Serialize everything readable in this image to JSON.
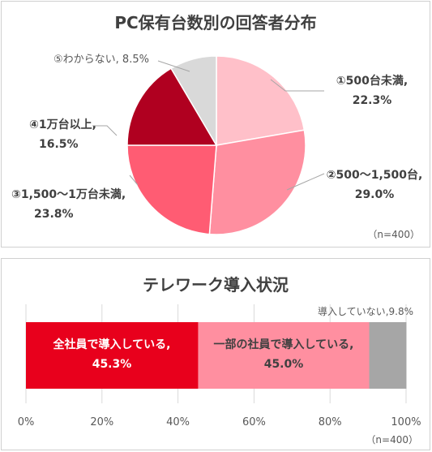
{
  "pie_chart": {
    "title": "PC保有台数別の回答者分布",
    "note": "（n=400）",
    "labels": [
      {
        "line1": "①500台未満,",
        "line2": "22.3%"
      },
      {
        "line1": "②500～1,500台,",
        "line2": "29.0%"
      },
      {
        "line1": "③1,500～1万台未満,",
        "line2": "23.8%"
      },
      {
        "line1": "④1万台以上,",
        "line2": "16.5%"
      },
      {
        "line1": "⑤わからない, 8.5%"
      }
    ]
  },
  "bar_chart": {
    "title": "テレワーク導入状況",
    "note": "（n=400）",
    "segment_labels": [
      {
        "line1": "全社員で導入している,",
        "line2": "45.3%"
      },
      {
        "line1": "一部の社員で導入している,",
        "line2": "45.0%"
      },
      {
        "line1": "導入していない,9.8%"
      }
    ],
    "ticks": [
      "0%",
      "20%",
      "40%",
      "60%",
      "80%",
      "100%"
    ]
  },
  "chart_data": [
    {
      "type": "pie",
      "title": "PC保有台数別の回答者分布",
      "categories": [
        "①500台未満",
        "②500～1,500台",
        "③1,500～1万台未満",
        "④1万台以上",
        "⑤わからない"
      ],
      "values": [
        22.3,
        29.0,
        23.8,
        16.5,
        8.5
      ],
      "colors": [
        "#ffc0c9",
        "#ff8fa0",
        "#ff5c73",
        "#b00020",
        "#d9d9d9"
      ],
      "n": 400
    },
    {
      "type": "bar",
      "orientation": "horizontal-stacked",
      "title": "テレワーク導入状況",
      "categories": [
        "全社員で導入している",
        "一部の社員で導入している",
        "導入していない"
      ],
      "values": [
        45.3,
        45.0,
        9.8
      ],
      "colors": [
        "#e8001c",
        "#ff8fa0",
        "#a6a6a6"
      ],
      "xlim": [
        0,
        100
      ],
      "xticks": [
        "0%",
        "20%",
        "40%",
        "60%",
        "80%",
        "100%"
      ],
      "grid": true,
      "n": 400
    }
  ]
}
